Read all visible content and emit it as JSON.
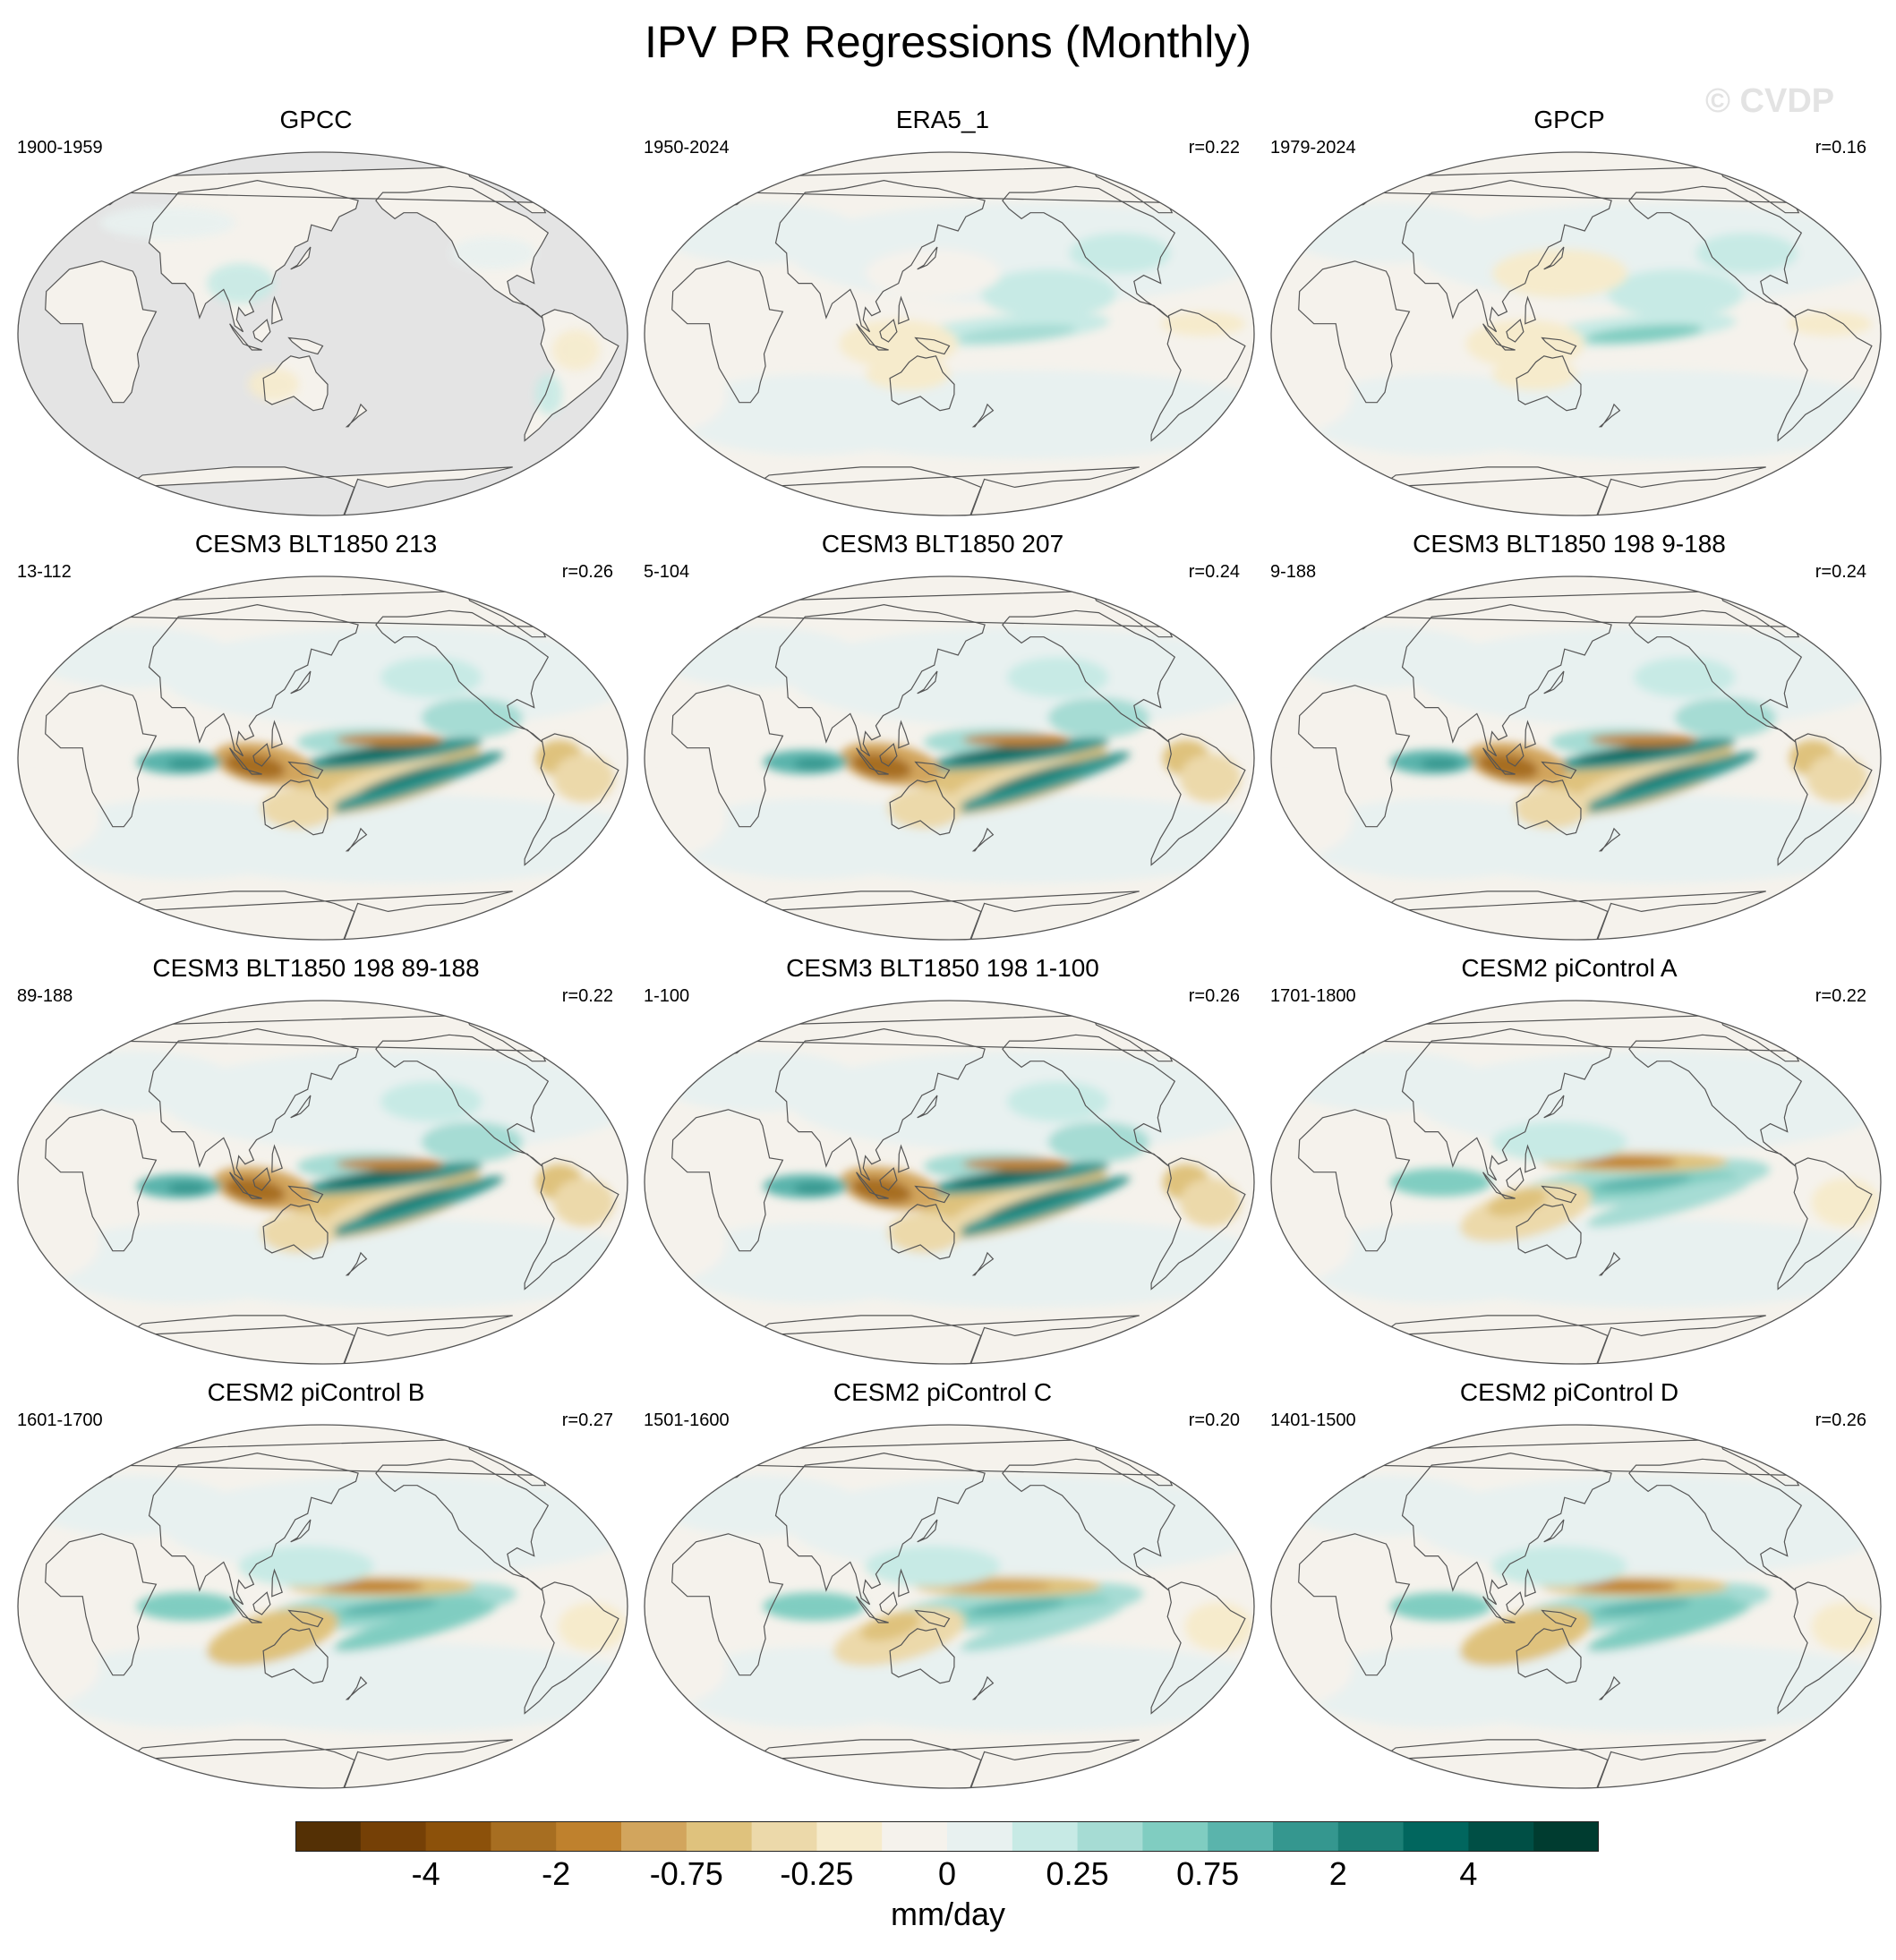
{
  "title": "IPV PR Regressions (Monthly)",
  "watermark": "© CVDP",
  "chart_data": {
    "type": "heatmap",
    "projection": "Robinson, centered on the Pacific",
    "variable": "precipitation regression onto IPV index",
    "panels": [
      {
        "name": "GPCC",
        "period": "1900-1959",
        "corr": "",
        "land_only": true,
        "strength": 0.35,
        "mode": "obs"
      },
      {
        "name": "ERA5_1",
        "period": "1950-2024",
        "corr": "r=0.22",
        "land_only": false,
        "strength": 0.5,
        "mode": "obs"
      },
      {
        "name": "GPCP",
        "period": "1979-2024",
        "corr": "r=0.16",
        "land_only": false,
        "strength": 0.65,
        "mode": "obs"
      },
      {
        "name": "CESM3 BLT1850 213",
        "period": "13-112",
        "corr": "r=0.26",
        "land_only": false,
        "strength": 1.0,
        "mode": "model"
      },
      {
        "name": "CESM3 BLT1850 207",
        "period": "5-104",
        "corr": "r=0.24",
        "land_only": false,
        "strength": 1.0,
        "mode": "model"
      },
      {
        "name": "CESM3 BLT1850 198 9-188",
        "period": "9-188",
        "corr": "r=0.24",
        "land_only": false,
        "strength": 1.0,
        "mode": "model"
      },
      {
        "name": "CESM3 BLT1850 198 89-188",
        "period": "89-188",
        "corr": "r=0.22",
        "land_only": false,
        "strength": 1.0,
        "mode": "model"
      },
      {
        "name": "CESM3 BLT1850 198 1-100",
        "period": "1-100",
        "corr": "r=0.26",
        "land_only": false,
        "strength": 1.0,
        "mode": "model"
      },
      {
        "name": "CESM2 piControl A",
        "period": "1701-1800",
        "corr": "r=0.22",
        "land_only": false,
        "strength": 0.8,
        "mode": "cesm2"
      },
      {
        "name": "CESM2 piControl B",
        "period": "1601-1700",
        "corr": "r=0.27",
        "land_only": false,
        "strength": 0.85,
        "mode": "cesm2"
      },
      {
        "name": "CESM2 piControl C",
        "period": "1501-1600",
        "corr": "r=0.20",
        "land_only": false,
        "strength": 0.75,
        "mode": "cesm2"
      },
      {
        "name": "CESM2 piControl D",
        "period": "1401-1500",
        "corr": "r=0.26",
        "land_only": false,
        "strength": 0.85,
        "mode": "cesm2"
      }
    ],
    "colorbar": {
      "units": "mm/day",
      "levels": [
        -5,
        -4,
        -3,
        -2,
        -1,
        -0.75,
        -0.5,
        -0.25,
        0,
        0.25,
        0.5,
        0.75,
        1,
        2,
        3,
        4,
        5
      ],
      "tick_labels": [
        "-4",
        "-2",
        "-0.75",
        "-0.25",
        "0",
        "0.25",
        "0.75",
        "2",
        "4"
      ],
      "tick_values": [
        -4,
        -2,
        -0.75,
        -0.25,
        0,
        0.25,
        0.75,
        2,
        4
      ],
      "colors": [
        "#543005",
        "#754006",
        "#8c510a",
        "#a76e21",
        "#bf812d",
        "#d2a55d",
        "#dfc27d",
        "#ecd9aa",
        "#f6ebcc",
        "#f5f2ec",
        "#e8f1f0",
        "#c7eae5",
        "#a6dcd4",
        "#80cdc1",
        "#5ab4ac",
        "#35978f",
        "#1c7f76",
        "#01665e",
        "#004f45",
        "#003c30"
      ]
    }
  }
}
